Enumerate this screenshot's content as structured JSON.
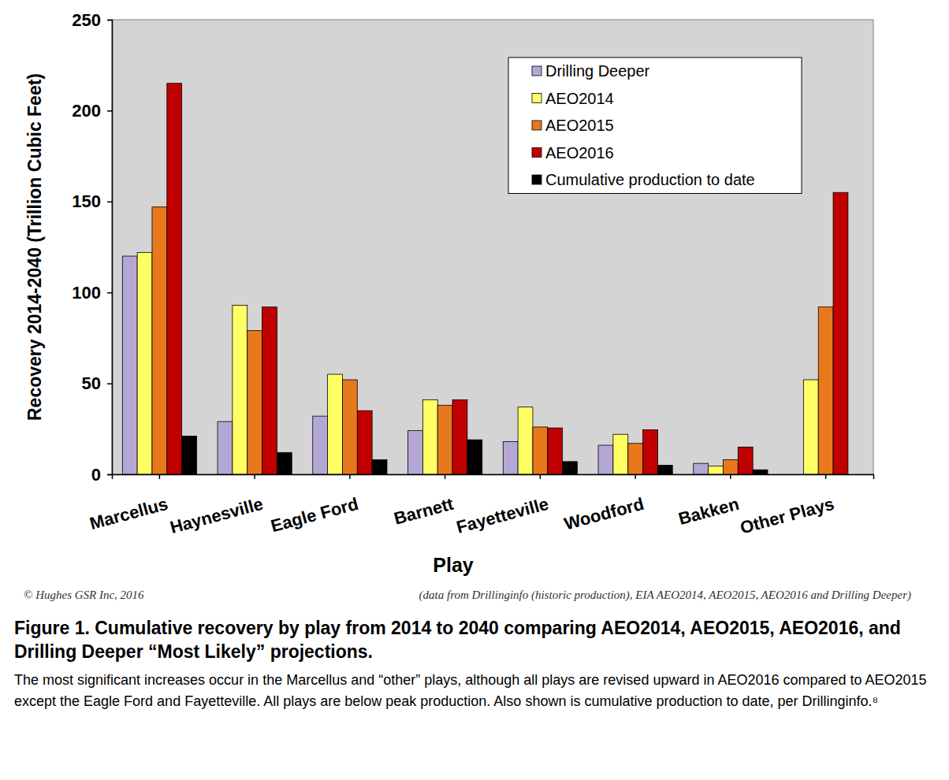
{
  "chart_data": {
    "type": "bar",
    "title": "Figure 1. Cumulative recovery by play from 2014 to 2040 comparing AEO2014, AEO2015, AEO2016, and Drilling Deeper “Most Likely” projections.",
    "subtitle": "The most significant increases occur in the Marcellus and “other” plays, although all plays are revised upward in AEO2016 compared to AEO2015 except the Eagle Ford and Fayetteville. All plays are below peak production. Also shown is cumulative production to date, per Drillinginfo.⁸",
    "annotations": [
      "©  Hughes GSR Inc, 2016",
      "(data from Drillinginfo (historic production), EIA AEO2014, AEO2015, AEO2016 and Drilling Deeper)"
    ],
    "x_label": "Play",
    "y_label": "Recovery 2014-2040 (Trillion Cubic Feet)",
    "categories": [
      "Marcellus",
      "Haynesville",
      "Eagle Ford",
      "Barnett",
      "Fayetteville",
      "Woodford",
      "Bakken",
      "Other Plays"
    ],
    "series": [
      {
        "name": "Drilling Deeper",
        "color": "#b4a7d6",
        "values": [
          120,
          29,
          32,
          24,
          18,
          16,
          6,
          null
        ]
      },
      {
        "name": "AEO2014",
        "color": "#ffff66",
        "values": [
          122,
          93,
          55,
          41,
          37,
          22,
          4.5,
          52
        ]
      },
      {
        "name": "AEO2015",
        "color": "#e8781c",
        "values": [
          147,
          79,
          52,
          38,
          26,
          17,
          8,
          92
        ]
      },
      {
        "name": "AEO2016",
        "color": "#c00000",
        "values": [
          215,
          92,
          35,
          41,
          25.5,
          24.5,
          15,
          155
        ]
      },
      {
        "name": "Cumulative production to date",
        "color": "#000000",
        "values": [
          21,
          12,
          8,
          19,
          7,
          5,
          2.5,
          null
        ]
      }
    ],
    "ylim": [
      0,
      250
    ],
    "yticks": [
      0,
      50,
      100,
      150,
      200,
      250
    ],
    "grid": false,
    "legend": "upper right"
  }
}
